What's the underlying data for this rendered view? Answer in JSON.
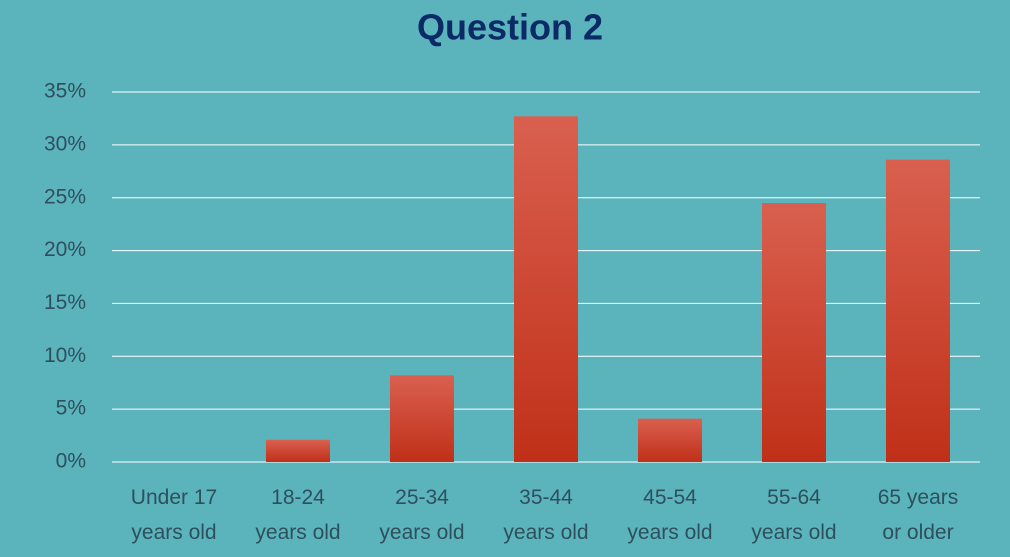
{
  "chart_data": {
    "type": "bar",
    "title": "Question 2",
    "categories": [
      "Under 17 years old",
      "18-24 years old",
      "25-34 years old",
      "35-44 years old",
      "45-54 years old",
      "55-64 years old",
      "65 years or older"
    ],
    "values": [
      0,
      2.1,
      8.2,
      32.7,
      4.1,
      24.5,
      28.6
    ],
    "color": "#d0402e",
    "ylim": [
      0,
      35
    ],
    "yticks": [
      {
        "value": 0,
        "label": "0%"
      },
      {
        "value": 5,
        "label": "5%"
      },
      {
        "value": 10,
        "label": "10%"
      },
      {
        "value": 15,
        "label": "15%"
      },
      {
        "value": 20,
        "label": "20%"
      },
      {
        "value": 25,
        "label": "25%"
      },
      {
        "value": 30,
        "label": "30%"
      },
      {
        "value": 35,
        "label": "35%"
      }
    ],
    "grid": true
  }
}
